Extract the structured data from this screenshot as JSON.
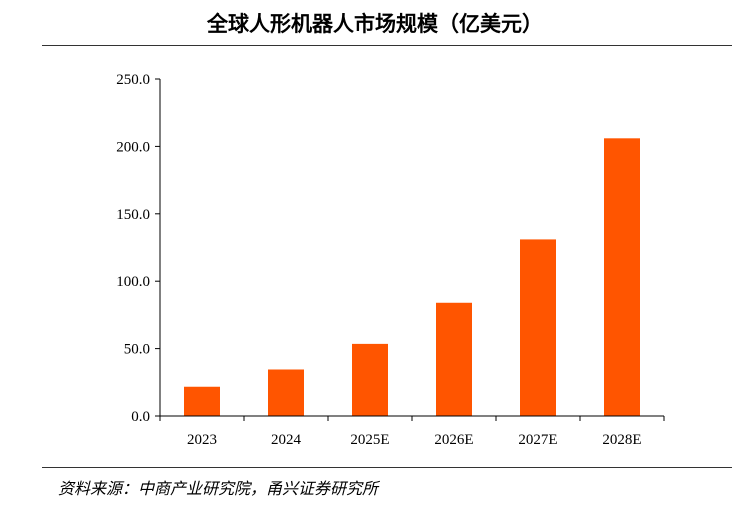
{
  "chart_data": {
    "type": "bar",
    "title": "全球人形机器人市场规模（亿美元）",
    "categories": [
      "2023",
      "2024",
      "2025E",
      "2026E",
      "2027E",
      "2028E"
    ],
    "values": [
      21.7,
      34.5,
      53.5,
      84.0,
      131.0,
      206.0
    ],
    "ylim": [
      0,
      250
    ],
    "yticks": [
      "0.0",
      "50.0",
      "100.0",
      "150.0",
      "200.0",
      "250.0"
    ],
    "bar_color": "#FF5500",
    "grid": false,
    "legend": "none"
  },
  "source": "资料来源：中商产业研究院，甬兴证券研究所"
}
